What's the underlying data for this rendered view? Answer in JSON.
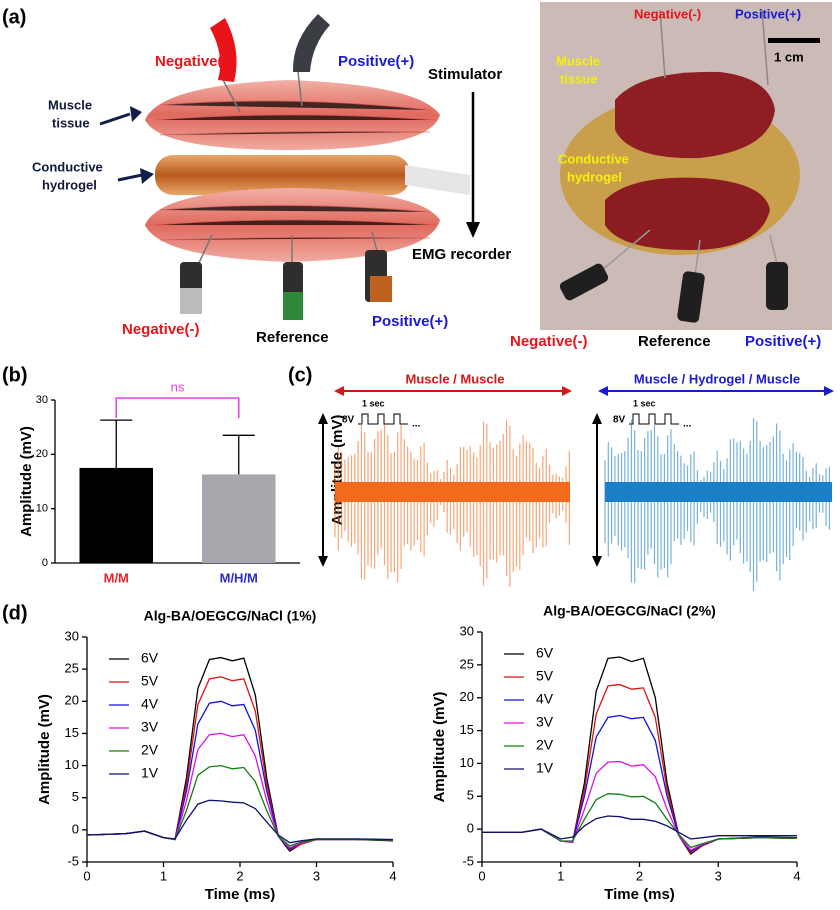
{
  "panel_labels": [
    "(a)",
    "(b)",
    "(c)",
    "(d)"
  ],
  "panel_a": {
    "illustration": {
      "top_negative": "Negative(-)",
      "top_positive": "Positive(+)",
      "muscle_tissue": [
        "Muscle",
        "tissue"
      ],
      "conductive_hydrogel": [
        "Conductive",
        "hydrogel"
      ],
      "stimulator": "Stimulator",
      "emg_recorder": "EMG recorder",
      "bottom_negative": "Negative(-)",
      "bottom_reference": "Reference",
      "bottom_positive": "Positive(+)"
    },
    "photo": {
      "top_negative": "Negative(-)",
      "top_positive": "Positive(+)",
      "scale": "1 cm",
      "muscle_tissue": [
        "Muscle",
        "tissue"
      ],
      "conductive_hydrogel": [
        "Conductive",
        "hydrogel"
      ],
      "bottom_negative": "Negative(-)",
      "bottom_reference": "Reference",
      "bottom_positive": "Positive(+)"
    }
  },
  "panel_c": {
    "ylabel": "Amplitude (mV)",
    "left_title": "Muscle / Muscle",
    "right_title": "Muscle / Hydrogel / Muscle",
    "pulse_period": "1 sec",
    "pulse_voltage": "8V",
    "ellipsis": "...",
    "left_color": "#f26b1d",
    "right_color": "#1a7fc4"
  },
  "chart_data": [
    {
      "type": "bar",
      "ylabel": "Amplitude (mV)",
      "categories": [
        "M/M",
        "M/H/M"
      ],
      "category_colors": [
        "#e8252b",
        "#2a2ad0"
      ],
      "values": [
        17.5,
        16.3
      ],
      "errors": [
        8.8,
        7.2
      ],
      "colors": [
        "#000000",
        "#a7a7ae"
      ],
      "ylim": [
        0,
        30
      ],
      "yticks": [
        0,
        10,
        20,
        30
      ],
      "annotation": "ns",
      "annotation_color": "#e040e0"
    },
    {
      "type": "line",
      "title": "Alg-BA/OEGCG/NaCl (1%)",
      "xlabel": "Time (ms)",
      "ylabel": "Amplitude (mV)",
      "x": [
        0,
        0.25,
        0.5,
        0.75,
        1.0,
        1.15,
        1.3,
        1.45,
        1.6,
        1.75,
        1.9,
        2.05,
        2.2,
        2.35,
        2.5,
        2.65,
        2.8,
        3.0,
        3.5,
        4.0
      ],
      "series": [
        {
          "name": "6V",
          "color": "#000000",
          "values": [
            -0.8,
            -0.7,
            -0.6,
            -0.2,
            -1.2,
            -1.5,
            8,
            22,
            26.5,
            26.8,
            26.3,
            26.7,
            21,
            8,
            -1,
            -3.3,
            -2.2,
            -1.5,
            -1.5,
            -1.7
          ]
        },
        {
          "name": "5V",
          "color": "#e01010",
          "values": [
            -0.8,
            -0.7,
            -0.6,
            -0.2,
            -1.2,
            -1.5,
            7,
            19.5,
            23.5,
            23.8,
            23.2,
            23.5,
            18.5,
            7,
            -1,
            -3.1,
            -2.2,
            -1.5,
            -1.5,
            -1.6
          ]
        },
        {
          "name": "4V",
          "color": "#1010e0",
          "values": [
            -0.8,
            -0.7,
            -0.6,
            -0.2,
            -1.2,
            -1.5,
            6,
            16.5,
            19.7,
            20,
            19.3,
            19.5,
            15.5,
            6,
            -1,
            -3,
            -2,
            -1.5,
            -1.5,
            -1.6
          ]
        },
        {
          "name": "3V",
          "color": "#e010e0",
          "values": [
            -0.8,
            -0.7,
            -0.6,
            -0.2,
            -1.2,
            -1.5,
            4.5,
            12.5,
            14.8,
            15,
            14.5,
            14.8,
            11.5,
            4.5,
            -1,
            -2.8,
            -2,
            -1.5,
            -1.5,
            -1.6
          ]
        },
        {
          "name": "2V",
          "color": "#108010",
          "values": [
            -0.8,
            -0.7,
            -0.6,
            -0.2,
            -1.2,
            -1.5,
            3,
            8.5,
            9.8,
            10,
            9.5,
            9.7,
            7.5,
            3,
            -1,
            -2.5,
            -1.9,
            -1.5,
            -1.5,
            -1.6
          ]
        },
        {
          "name": "1V",
          "color": "#101070",
          "values": [
            -0.8,
            -0.7,
            -0.6,
            -0.2,
            -1.2,
            -1.4,
            1.5,
            4,
            4.6,
            4.5,
            4.3,
            4.2,
            3.3,
            1.2,
            -0.8,
            -2,
            -1.7,
            -1.4,
            -1.4,
            -1.5
          ]
        }
      ],
      "xlim": [
        0,
        4
      ],
      "xticks": [
        0,
        1,
        2,
        3,
        4
      ],
      "ylim": [
        -5,
        30
      ],
      "yticks": [
        -5,
        0,
        5,
        10,
        15,
        20,
        25,
        30
      ]
    },
    {
      "type": "line",
      "title": "Alg-BA/OEGCG/NaCl (2%)",
      "xlabel": "Time (ms)",
      "ylabel": "Amplitude (mV)",
      "x": [
        0,
        0.25,
        0.5,
        0.75,
        1.0,
        1.15,
        1.3,
        1.45,
        1.6,
        1.75,
        1.9,
        2.05,
        2.2,
        2.35,
        2.5,
        2.65,
        2.8,
        3.0,
        3.5,
        4.0
      ],
      "series": [
        {
          "name": "6V",
          "color": "#000000",
          "values": [
            -0.5,
            -0.5,
            -0.5,
            0,
            -1.8,
            -2,
            7,
            21,
            26,
            26.2,
            25.5,
            26,
            20,
            7,
            -1,
            -3.8,
            -2.5,
            -1.5,
            -1.2,
            -1.3
          ]
        },
        {
          "name": "5V",
          "color": "#e01010",
          "values": [
            -0.5,
            -0.5,
            -0.5,
            0,
            -1.8,
            -2,
            6,
            17.5,
            21.8,
            22,
            21.3,
            21.5,
            17,
            6,
            -1,
            -3.6,
            -2.5,
            -1.5,
            -1.3,
            -1.4
          ]
        },
        {
          "name": "4V",
          "color": "#1010e0",
          "values": [
            -0.5,
            -0.5,
            -0.5,
            0,
            -1.8,
            -2,
            5,
            14,
            17,
            17.3,
            16.8,
            17,
            13.5,
            5,
            -1,
            -3.4,
            -2.4,
            -1.5,
            -1.3,
            -1.4
          ]
        },
        {
          "name": "3V",
          "color": "#e010e0",
          "values": [
            -0.5,
            -0.5,
            -0.5,
            0,
            -1.8,
            -2,
            3,
            8.5,
            10.2,
            10.3,
            9.6,
            9.8,
            8,
            3,
            -1,
            -3.2,
            -2.3,
            -1.5,
            -1.3,
            -1.4
          ]
        },
        {
          "name": "2V",
          "color": "#108010",
          "values": [
            -0.5,
            -0.5,
            -0.5,
            0,
            -1.8,
            -1.8,
            1.5,
            4.5,
            5.4,
            5.3,
            4.9,
            5,
            4,
            1.5,
            -0.8,
            -2.8,
            -2.2,
            -1.5,
            -1.3,
            -1.4
          ]
        },
        {
          "name": "1V",
          "color": "#101070",
          "values": [
            -0.5,
            -0.5,
            -0.5,
            0,
            -1.5,
            -1.2,
            0.5,
            1.6,
            2,
            1.9,
            1.5,
            1.5,
            1.2,
            0.5,
            -0.5,
            -1.5,
            -1.3,
            -1,
            -1,
            -1
          ]
        }
      ],
      "xlim": [
        0,
        4
      ],
      "xticks": [
        0,
        1,
        2,
        3,
        4
      ],
      "ylim": [
        -5,
        30
      ],
      "yticks": [
        -5,
        0,
        5,
        10,
        15,
        20,
        25,
        30
      ]
    }
  ]
}
